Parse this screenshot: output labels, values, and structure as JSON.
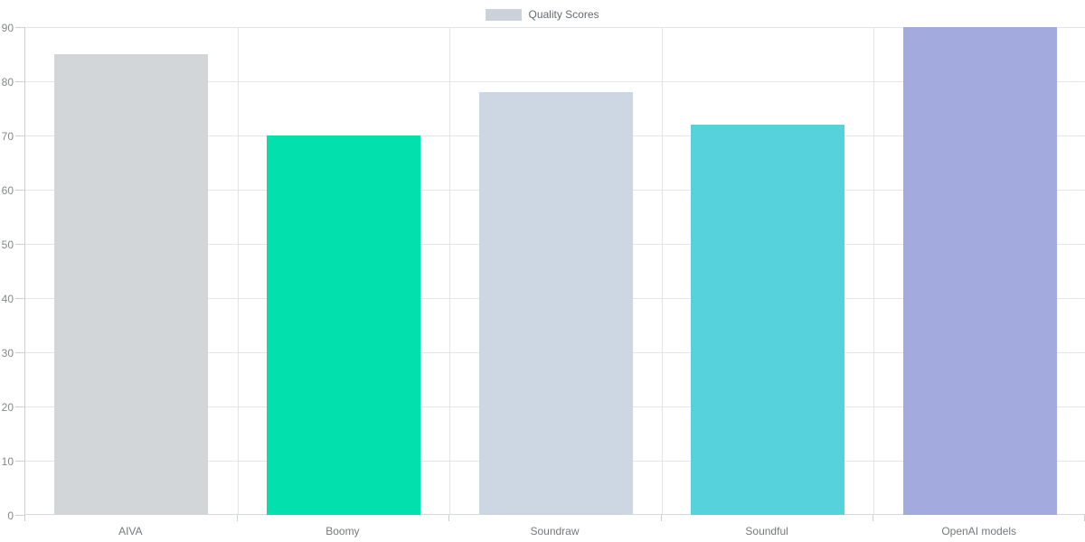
{
  "legend": {
    "label": "Quality Scores",
    "swatch_color": "#ccd2d9"
  },
  "chart_data": {
    "type": "bar",
    "title": "",
    "xlabel": "",
    "ylabel": "",
    "categories": [
      "AIVA",
      "Boomy",
      "Soundraw",
      "Soundful",
      "OpenAI models"
    ],
    "values": [
      85,
      70,
      78,
      72,
      90
    ],
    "bar_colors": [
      "#d2d6d9",
      "#01e0ad",
      "#cdd7e3",
      "#55d2dc",
      "#a3abde"
    ],
    "series_name": "Quality Scores",
    "ylim": [
      0,
      90
    ],
    "ytick_step": 10,
    "yticks": [
      0,
      10,
      20,
      30,
      40,
      50,
      60,
      70,
      80,
      90
    ],
    "grid": true,
    "legend_position": "top-center"
  },
  "colors": {
    "background": "#ffffff",
    "gridline": "#e5e6e8",
    "axis": "#ccd0d3",
    "tick_text": "#858889",
    "category_text": "#77797b",
    "legend_text": "#666a6e"
  }
}
